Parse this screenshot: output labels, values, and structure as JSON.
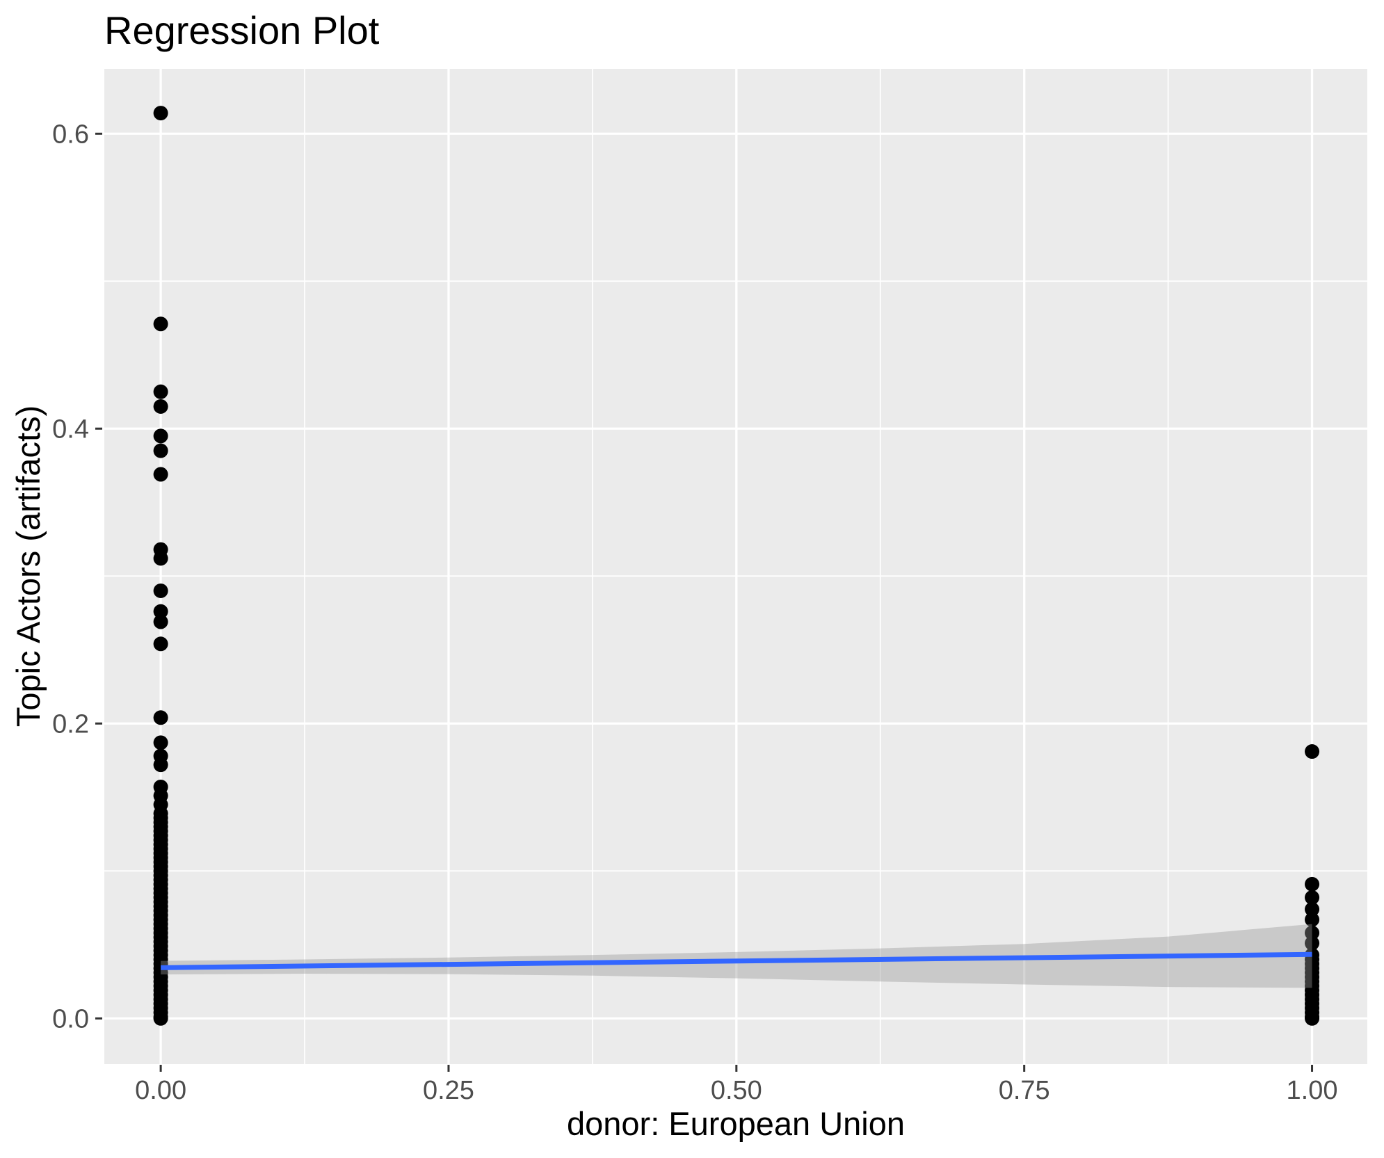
{
  "title": "Regression Plot",
  "chart_data": {
    "type": "scatter",
    "title": "Regression Plot",
    "xlabel": "donor: European Union",
    "ylabel": "Topic Actors (artifacts)",
    "xlim": [
      -0.049,
      1.048
    ],
    "ylim": [
      -0.031,
      0.644
    ],
    "x_major_ticks": [
      0,
      0.25,
      0.5,
      0.75,
      1
    ],
    "x_tick_labels": [
      "0.00",
      "0.25",
      "0.50",
      "0.75",
      "1.00"
    ],
    "x_minor_ticks": [
      0.125,
      0.375,
      0.625,
      0.875
    ],
    "y_major_ticks": [
      0,
      0.2,
      0.4,
      0.6
    ],
    "y_tick_labels": [
      "0.0",
      "0.2",
      "0.4",
      "0.6"
    ],
    "y_minor_ticks": [
      0.1,
      0.3,
      0.5
    ],
    "grid": "on",
    "legend": "none",
    "series": [
      {
        "name": "observations at donor=0",
        "x_value": 0,
        "y_values": [
          0.614,
          0.471,
          0.425,
          0.415,
          0.395,
          0.385,
          0.369,
          0.318,
          0.312,
          0.29,
          0.276,
          0.269,
          0.254,
          0.204,
          0.187,
          0.178,
          0.172,
          0.157,
          0.151,
          0.145,
          0.139,
          0.136,
          0.133,
          0.13,
          0.127,
          0.124,
          0.121,
          0.118,
          0.115,
          0.112,
          0.109,
          0.106,
          0.103,
          0.1,
          0.097,
          0.094,
          0.091,
          0.088,
          0.085,
          0.082,
          0.079,
          0.076,
          0.073,
          0.07,
          0.067,
          0.064,
          0.061,
          0.058,
          0.055,
          0.052,
          0.049,
          0.046,
          0.043,
          0.04,
          0.037,
          0.034,
          0.031,
          0.028,
          0.025,
          0.022,
          0.019,
          0.016,
          0.013,
          0.01,
          0.007,
          0.004,
          0.001,
          0.0
        ]
      },
      {
        "name": "observations at donor=1",
        "x_value": 1,
        "y_values": [
          0.181,
          0.091,
          0.082,
          0.074,
          0.067,
          0.058,
          0.051,
          0.043,
          0.04,
          0.037,
          0.034,
          0.031,
          0.028,
          0.025,
          0.022,
          0.019,
          0.016,
          0.013,
          0.01,
          0.007,
          0.004,
          0.001,
          0.0
        ]
      }
    ],
    "regression_line": {
      "x": [
        0,
        1
      ],
      "y": [
        0.0344,
        0.0434
      ]
    },
    "confidence_band": {
      "x": [
        0,
        0.125,
        0.25,
        0.375,
        0.5,
        0.625,
        0.75,
        0.875,
        1
      ],
      "upper": [
        0.039,
        0.04,
        0.0413,
        0.043,
        0.045,
        0.0475,
        0.0505,
        0.0555,
        0.064
      ],
      "lower": [
        0.0298,
        0.0303,
        0.03,
        0.029,
        0.0272,
        0.025,
        0.023,
        0.0213,
        0.0207
      ]
    },
    "point_radius_px": 10.5,
    "colors": {
      "panel_background": "#EBEBEB",
      "gridline": "#FFFFFF",
      "point": "#000000",
      "regression_line": "#3366FF",
      "confidence_band_fill": "rgba(150,150,150,0.4)",
      "tick_mark": "#333333",
      "tick_label": "#4D4D4D",
      "title_text": "#000000"
    }
  }
}
